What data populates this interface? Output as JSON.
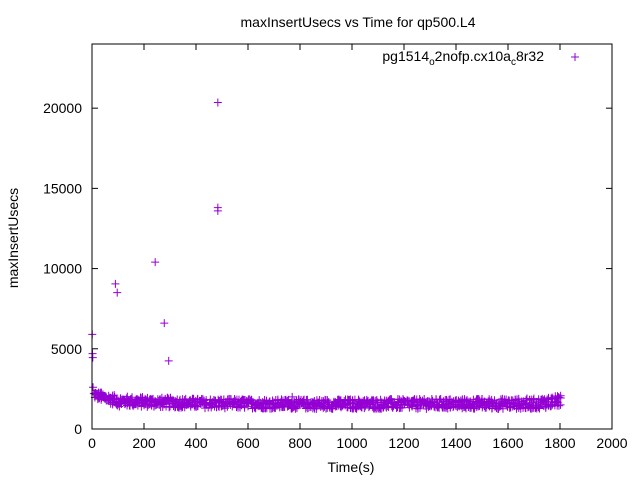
{
  "chart_data": {
    "type": "scatter",
    "title": "maxInsertUsecs vs Time for qp500.L4",
    "xlabel": "Time(s)",
    "ylabel": "maxInsertUsecs",
    "xlim": [
      0,
      2000
    ],
    "ylim": [
      0,
      24000
    ],
    "x_ticks": [
      0,
      200,
      400,
      600,
      800,
      1000,
      1200,
      1400,
      1600,
      1800,
      2000
    ],
    "y_ticks": [
      0,
      5000,
      10000,
      15000,
      20000
    ],
    "x_tick_labels": [
      "0",
      "200",
      "400",
      "600",
      "800",
      "1000",
      "1200",
      "1400",
      "1600",
      "1800",
      "2000"
    ],
    "y_tick_labels": [
      "0",
      "5000",
      "10000",
      "15000",
      "20000"
    ],
    "grid": false,
    "legend": {
      "position": "top-right",
      "prefix": "pg1514",
      "sub1": "o",
      "middle": "2nofp.cx10a",
      "sub2": "c",
      "suffix": "8r32"
    },
    "marker": "+",
    "color": "#9400d3",
    "series": [
      {
        "name": "pg1514_o2nofp.cx10a_c8r32",
        "outliers": [
          {
            "x": 1,
            "y": 5900
          },
          {
            "x": 2,
            "y": 4700
          },
          {
            "x": 3,
            "y": 4450
          },
          {
            "x": 4,
            "y": 2600
          },
          {
            "x": 90,
            "y": 9050
          },
          {
            "x": 97,
            "y": 8500
          },
          {
            "x": 243,
            "y": 10400
          },
          {
            "x": 278,
            "y": 6600
          },
          {
            "x": 295,
            "y": 4250
          },
          {
            "x": 484,
            "y": 20350
          },
          {
            "x": 484,
            "y": 13800
          },
          {
            "x": 484,
            "y": 13600
          },
          {
            "x": 770,
            "y": 2000
          }
        ],
        "band": {
          "x_start": 5,
          "x_end": 1800,
          "step": 7,
          "segments": [
            {
              "x": 0,
              "upper": 2400,
              "lower": 1900
            },
            {
              "x": 100,
              "upper": 2050,
              "lower": 1400
            },
            {
              "x": 400,
              "upper": 1900,
              "lower": 1300
            },
            {
              "x": 800,
              "upper": 1850,
              "lower": 1250
            },
            {
              "x": 1700,
              "upper": 1900,
              "lower": 1250
            },
            {
              "x": 1800,
              "upper": 2100,
              "lower": 1400
            }
          ]
        }
      }
    ]
  }
}
